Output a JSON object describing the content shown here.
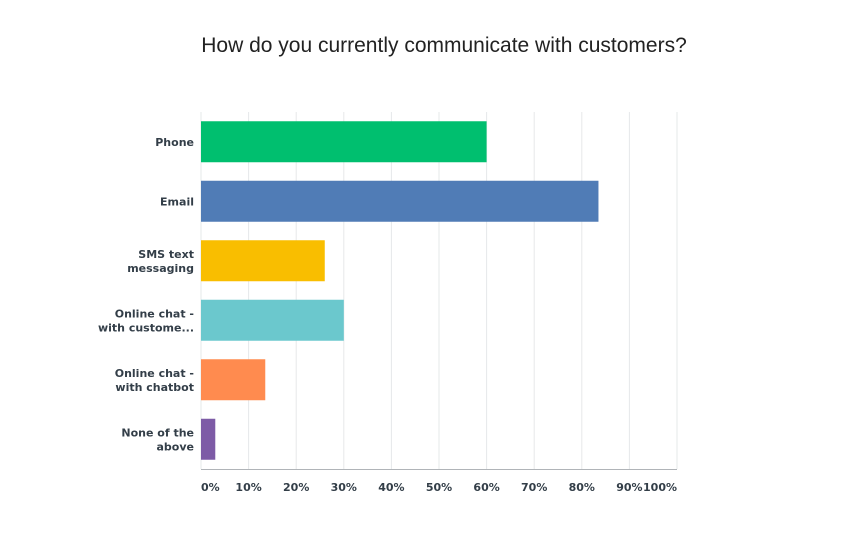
{
  "chart_data": {
    "type": "bar",
    "orientation": "horizontal",
    "title": "How do you currently communicate with customers?",
    "categories": [
      [
        "Phone"
      ],
      [
        "Email"
      ],
      [
        "SMS text",
        "messaging"
      ],
      [
        "Online chat -",
        "with custome..."
      ],
      [
        "Online chat -",
        "with chatbot"
      ],
      [
        "None of the",
        "above"
      ]
    ],
    "values": [
      60,
      83.5,
      26,
      30,
      13.5,
      3
    ],
    "colors": [
      "#00bf6f",
      "#507cb6",
      "#f9be00",
      "#6bc8cd",
      "#ff8b4f",
      "#7d5ba6"
    ],
    "xlim": [
      0,
      100
    ],
    "xticks": [
      "0%",
      "10%",
      "20%",
      "30%",
      "40%",
      "50%",
      "60%",
      "70%",
      "80%",
      "90%",
      "100%"
    ],
    "grid": true
  }
}
